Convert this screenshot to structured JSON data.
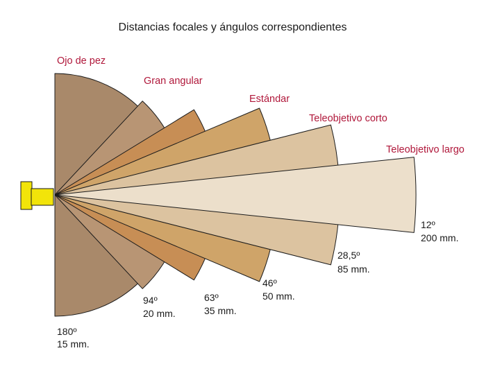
{
  "title": "Distancias focales y ángulos correspondientes",
  "lenses": [
    {
      "category": "Ojo de pez",
      "angle_label": "180º",
      "focal_label": "15 mm.",
      "angle_deg": 180,
      "color": "#a9896a"
    },
    {
      "category": "Gran angular",
      "angle_label": "94º",
      "focal_label": "20 mm.",
      "angle_deg": 94,
      "color": "#b89574"
    },
    {
      "category": "Estándar",
      "angle_label": "63º",
      "focal_label": "35 mm.",
      "angle_deg": 63,
      "color": "#c78e55"
    },
    {
      "category": "Teleobjetivo corto",
      "angle_label": "46º",
      "focal_label": "50 mm.",
      "angle_deg": 46,
      "color": "#cfa469"
    },
    {
      "category": "Teleobjetivo largo",
      "angle_label": "28,5º",
      "focal_label": "85 mm.",
      "angle_deg": 28.5,
      "color": "#dcc3a0"
    },
    {
      "category": "",
      "angle_label": "12º",
      "focal_label": "200 mm.",
      "angle_deg": 12,
      "color": "#ecdfcb"
    }
  ],
  "camera_color": "#f2e40a"
}
